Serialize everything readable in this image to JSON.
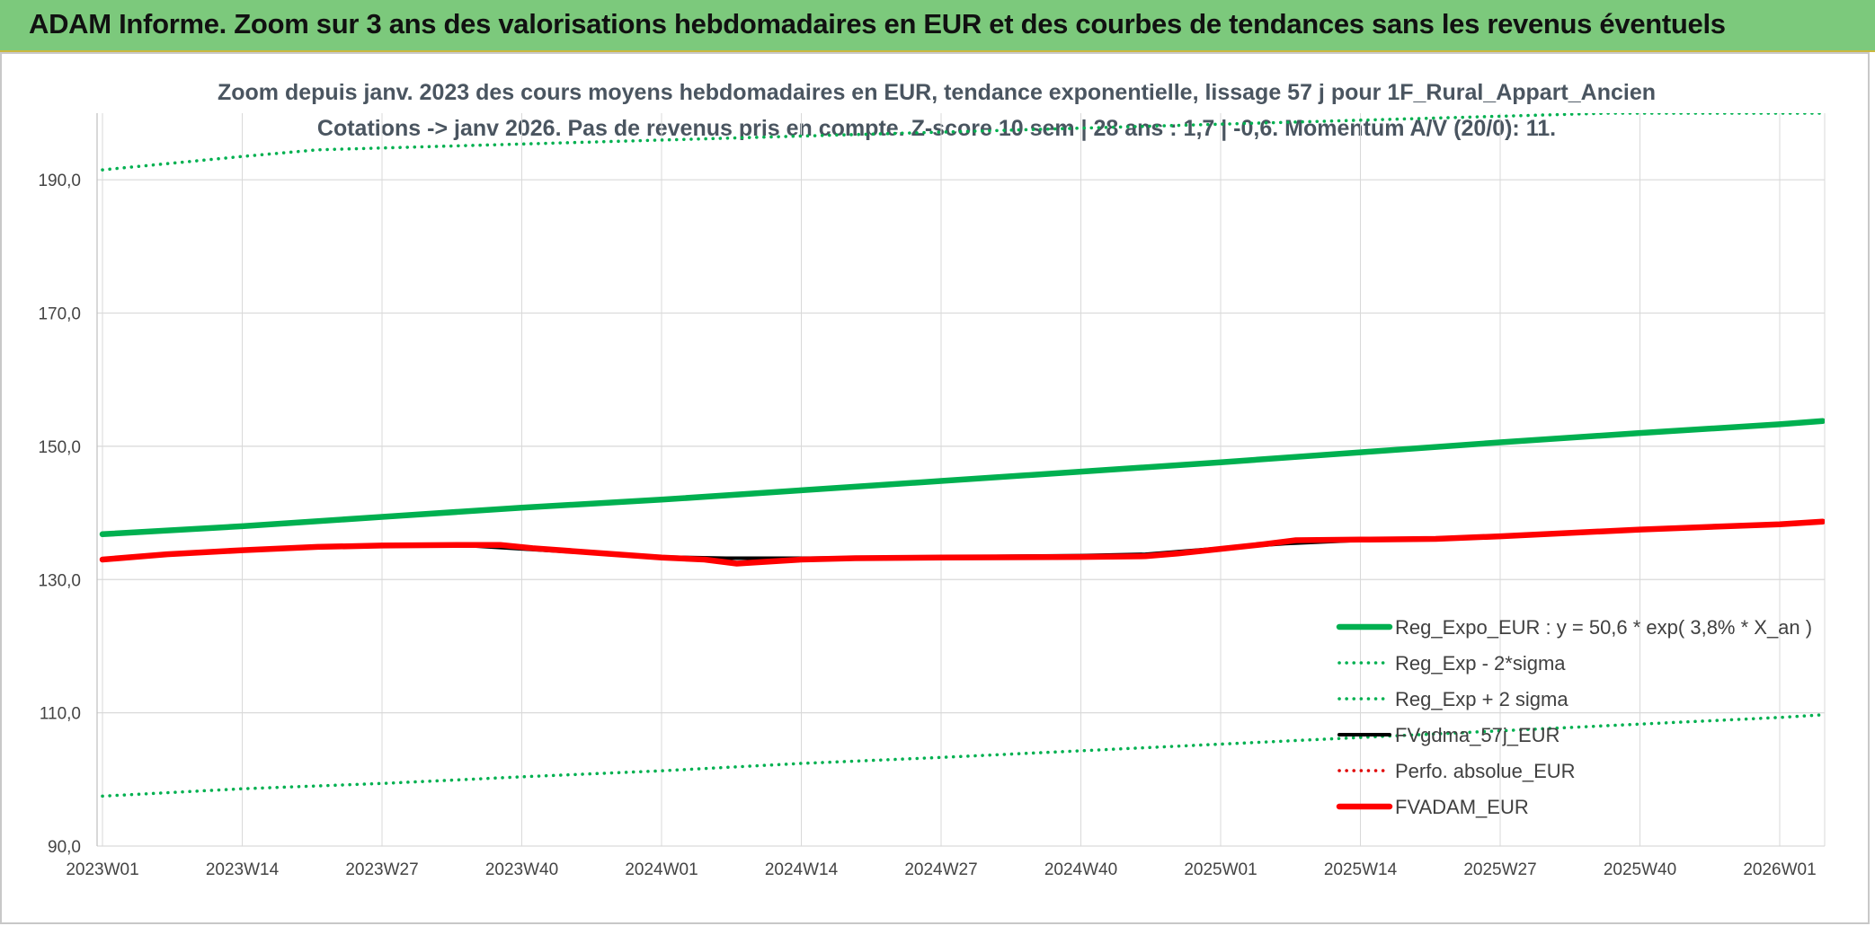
{
  "banner": {
    "title": "ADAM Informe. Zoom sur 3 ans des valorisations hebdomadaires en EUR et des courbes de tendances sans les revenus éventuels"
  },
  "colors": {
    "banner_bg": "#7cc97c",
    "reg_expo": "#00b050",
    "sigma_bands": "#00b050",
    "fvgdma": "#000000",
    "perfo": "#e00000",
    "fvadam": "#ff0000",
    "grid": "#d9d9d9"
  },
  "chart_data": {
    "type": "line",
    "title_line1": "Zoom depuis janv. 2023 des cours moyens hebdomadaires en EUR, tendance exponentielle, lissage 57 j pour 1F_Rural_Appart_Ancien",
    "title_line2": "Cotations -> janv 2026. Pas de revenus pris en compte. Z-score 10 sem | 28 ans : 1,7 | -0,6. Momentum A/V (20/0): 11.",
    "x_ticks": [
      "2023W01",
      "2023W14",
      "2023W27",
      "2023W40",
      "2024W01",
      "2024W14",
      "2024W27",
      "2024W40",
      "2025W01",
      "2025W14",
      "2025W27",
      "2025W40",
      "2026W01"
    ],
    "y_ticks": [
      "90,0",
      "110,0",
      "130,0",
      "150,0",
      "170,0",
      "190,0"
    ],
    "ylim": [
      90,
      200
    ],
    "xlim_weeks": [
      0,
      160
    ],
    "grid": true,
    "legend_position": "bottom-right",
    "series": [
      {
        "name": "Reg_Expo_EUR : y = 50,6 * exp( 3,8% *  X_an )",
        "style": "solid-thick",
        "color": "#00b050",
        "x": [
          0,
          13,
          26,
          39,
          52,
          65,
          78,
          91,
          104,
          117,
          130,
          143,
          156,
          160
        ],
        "y": [
          136.8,
          138.0,
          139.4,
          140.8,
          142.0,
          143.4,
          144.8,
          146.2,
          147.6,
          149.1,
          150.6,
          152.0,
          153.3,
          153.8
        ]
      },
      {
        "name": "Reg_Exp - 2*sigma",
        "style": "dotted",
        "color": "#00b050",
        "x": [
          0,
          13,
          26,
          39,
          52,
          65,
          78,
          91,
          104,
          117,
          130,
          143,
          156,
          160
        ],
        "y": [
          97.5,
          98.6,
          99.4,
          100.4,
          101.3,
          102.4,
          103.3,
          104.3,
          105.3,
          106.3,
          107.3,
          108.3,
          109.3,
          109.7
        ]
      },
      {
        "name": "Reg_Exp + 2 sigma",
        "style": "dotted",
        "color": "#00b050",
        "x": [
          0,
          13,
          20,
          140,
          160
        ],
        "y": [
          191.5,
          193.5,
          194.5,
          200,
          200
        ]
      },
      {
        "name": "FVgdma_57j_EUR",
        "style": "solid",
        "color": "#000000",
        "x": [
          0,
          6,
          13,
          20,
          26,
          33,
          39,
          46,
          52,
          58,
          65,
          78,
          91,
          97,
          104,
          110,
          117,
          124,
          130,
          143,
          156,
          160
        ],
        "y": [
          133.0,
          133.8,
          134.4,
          134.9,
          135.2,
          135.2,
          134.6,
          133.9,
          133.4,
          133.2,
          133.2,
          133.4,
          133.6,
          133.8,
          134.7,
          135.4,
          135.9,
          136.0,
          136.5,
          137.5,
          138.3,
          138.7
        ]
      },
      {
        "name": "Perfo. absolue_EUR",
        "style": "dotted",
        "color": "#e00000",
        "x": [],
        "y": []
      },
      {
        "name": "FVADAM_EUR",
        "style": "solid-thick",
        "color": "#ff0000",
        "x": [
          0,
          6,
          13,
          20,
          26,
          33,
          37,
          40,
          46,
          52,
          56,
          59,
          62,
          65,
          70,
          78,
          91,
          97,
          100,
          104,
          108,
          111,
          117,
          124,
          130,
          143,
          156,
          160
        ],
        "y": [
          133.0,
          133.8,
          134.4,
          134.9,
          135.1,
          135.2,
          135.2,
          134.7,
          134.0,
          133.3,
          133.0,
          132.4,
          132.7,
          133.0,
          133.2,
          133.3,
          133.4,
          133.5,
          133.9,
          134.6,
          135.3,
          135.9,
          136.0,
          136.1,
          136.5,
          137.5,
          138.3,
          138.7
        ]
      }
    ]
  }
}
